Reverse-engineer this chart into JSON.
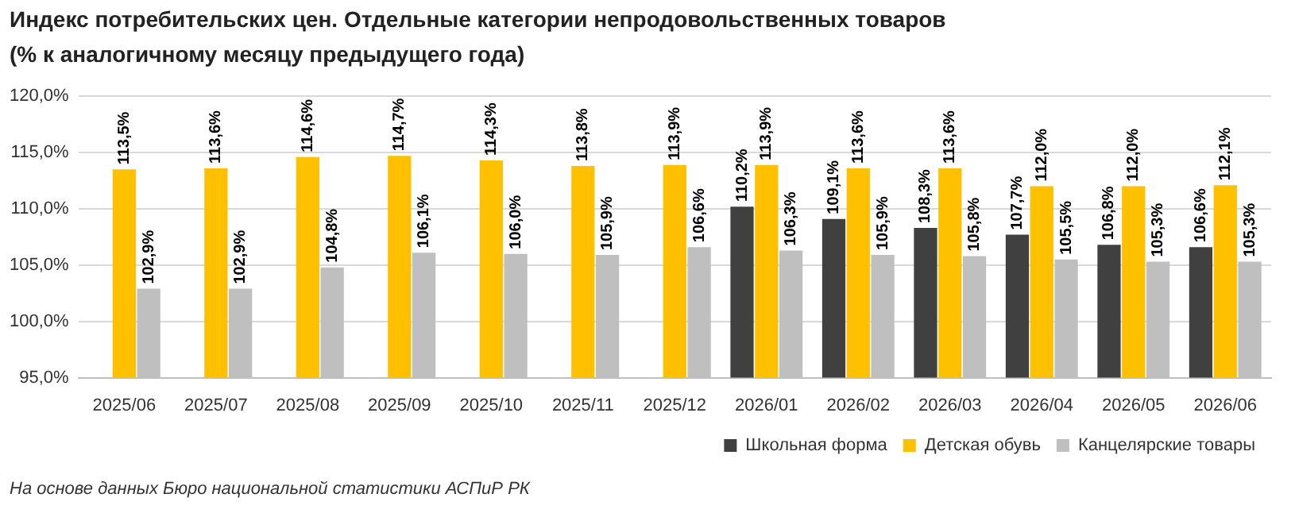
{
  "chart_data": {
    "type": "bar",
    "title": "Индекс потребительских цен. Отдельные категории непродовольственных товаров",
    "subtitle": "(% к аналогичному месяцу предыдущего года)",
    "categories": [
      "2025/06",
      "2025/07",
      "2025/08",
      "2025/09",
      "2025/10",
      "2025/11",
      "2025/12",
      "2026/01",
      "2026/02",
      "2026/03",
      "2026/04",
      "2026/05",
      "2026/06"
    ],
    "series": [
      {
        "name": "Школьная форма",
        "color": "#404040",
        "values": [
          null,
          null,
          null,
          null,
          null,
          null,
          null,
          110.2,
          109.1,
          108.3,
          107.7,
          106.8,
          106.6
        ],
        "value_labels": [
          null,
          null,
          null,
          null,
          null,
          null,
          null,
          "110,2%",
          "109,1%",
          "108,3%",
          "107,7%",
          "106,8%",
          "106,6%"
        ]
      },
      {
        "name": "Детская обувь",
        "color": "#ffc000",
        "values": [
          113.5,
          113.6,
          114.6,
          114.7,
          114.3,
          113.8,
          113.9,
          113.9,
          113.6,
          113.6,
          112.0,
          112.0,
          112.1
        ],
        "value_labels": [
          "113,5%",
          "113,6%",
          "114,6%",
          "114,7%",
          "114,3%",
          "113,8%",
          "113,9%",
          "113,9%",
          "113,6%",
          "113,6%",
          "112,0%",
          "112,0%",
          "112,1%"
        ]
      },
      {
        "name": "Канцелярские товары",
        "color": "#bfbfbf",
        "values": [
          102.9,
          102.9,
          104.8,
          106.1,
          106.0,
          105.9,
          106.6,
          106.3,
          105.9,
          105.8,
          105.5,
          105.3,
          105.3
        ],
        "value_labels": [
          "102,9%",
          "102,9%",
          "104,8%",
          "106,1%",
          "106,0%",
          "105,9%",
          "106,6%",
          "106,3%",
          "105,9%",
          "105,8%",
          "105,5%",
          "105,3%",
          "105,3%"
        ]
      }
    ],
    "ylim": [
      95,
      120
    ],
    "yticks": [
      {
        "value": 95,
        "label": "95,0%"
      },
      {
        "value": 100,
        "label": "100,0%"
      },
      {
        "value": 105,
        "label": "105,0%"
      },
      {
        "value": 110,
        "label": "110,0%"
      },
      {
        "value": 115,
        "label": "115,0%"
      },
      {
        "value": 120,
        "label": "120,0%"
      }
    ],
    "grid": "y",
    "legend": "bottom",
    "annotations": [
      "На основе данных Бюро национальной статистики АСПиР РК"
    ]
  }
}
